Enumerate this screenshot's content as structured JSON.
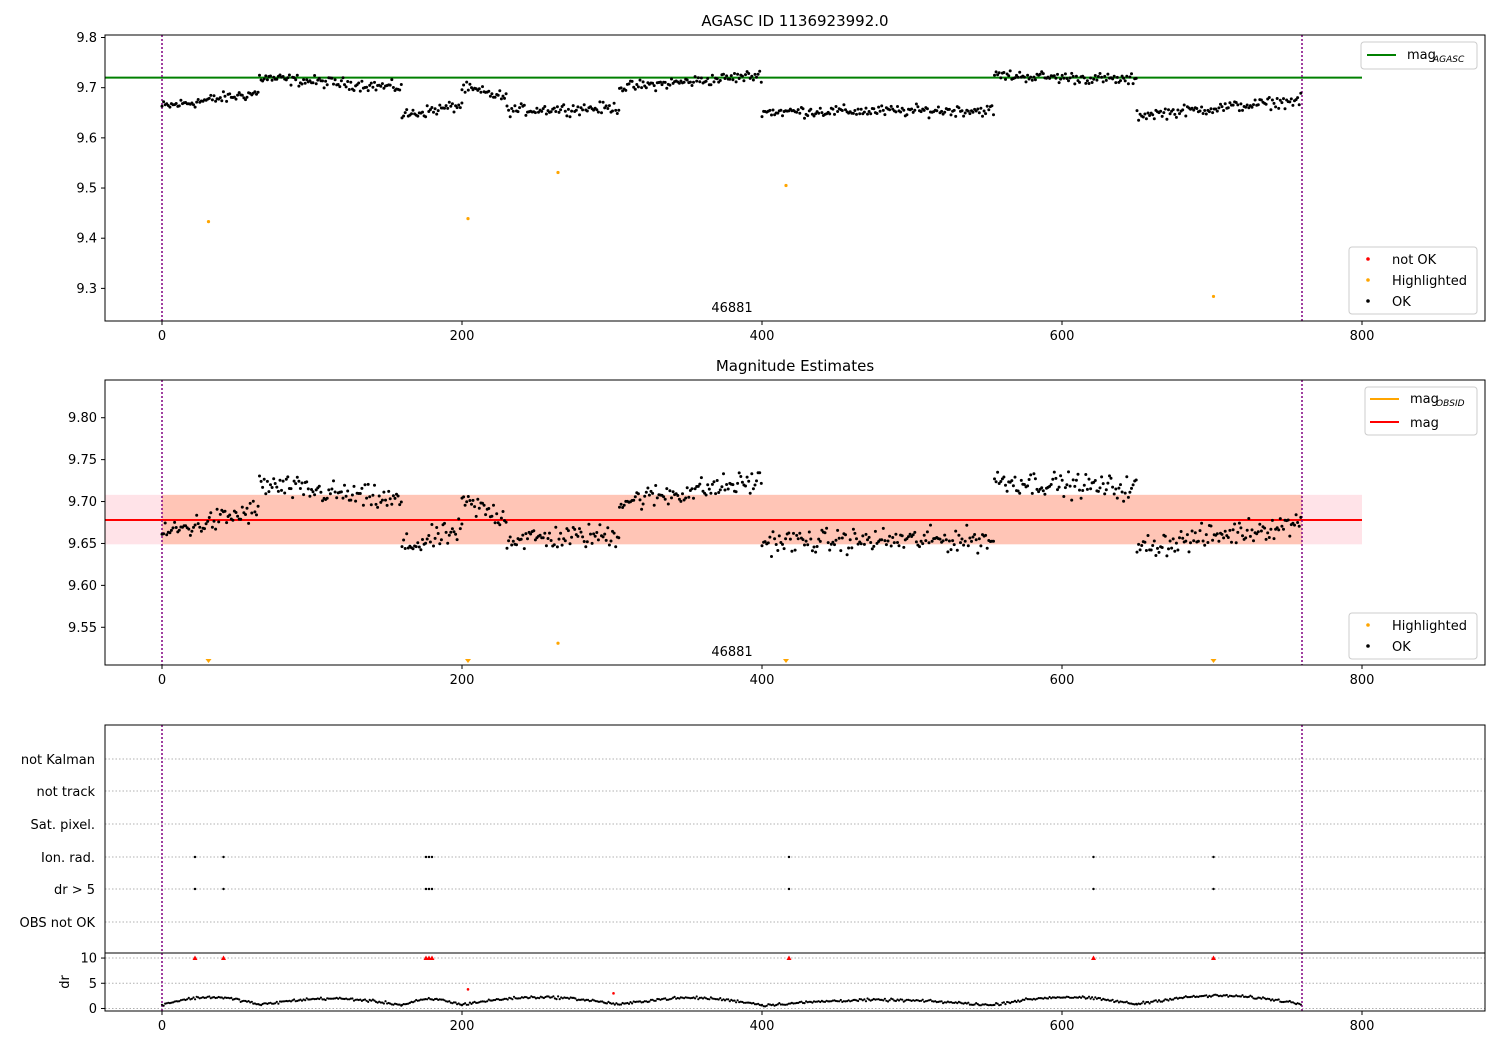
{
  "chart_data": [
    {
      "type": "scatter",
      "title": "AGASC ID 1136923992.0",
      "xlim": [
        -38,
        882
      ],
      "ylim": [
        9.235,
        9.805
      ],
      "x_ticks": [
        0,
        200,
        400,
        600,
        800
      ],
      "x_tick_labels": [
        "0",
        "200",
        "400",
        "600",
        "800"
      ],
      "y_ticks": [
        9.3,
        9.4,
        9.5,
        9.6,
        9.7,
        9.8
      ],
      "y_tick_labels": [
        "9.3",
        "9.4",
        "9.5",
        "9.6",
        "9.7",
        "9.8"
      ],
      "annotation": "46881",
      "annotation_x": 380,
      "vlines": [
        0,
        760
      ],
      "mag_agasc": 9.72,
      "mag_agasc_x_range": [
        -38,
        800
      ],
      "ok_segments": [
        {
          "x0": 0,
          "x1": 65,
          "y0": 9.662,
          "y1": 9.69
        },
        {
          "x0": 65,
          "x1": 160,
          "y0": 9.72,
          "y1": 9.7
        },
        {
          "x0": 160,
          "x1": 200,
          "y0": 9.645,
          "y1": 9.665
        },
        {
          "x0": 200,
          "x1": 230,
          "y0": 9.7,
          "y1": 9.68
        },
        {
          "x0": 230,
          "x1": 305,
          "y0": 9.655,
          "y1": 9.66
        },
        {
          "x0": 305,
          "x1": 400,
          "y0": 9.7,
          "y1": 9.725
        },
        {
          "x0": 400,
          "x1": 555,
          "y0": 9.652,
          "y1": 9.655
        },
        {
          "x0": 555,
          "x1": 650,
          "y0": 9.725,
          "y1": 9.715
        },
        {
          "x0": 650,
          "x1": 760,
          "y0": 9.645,
          "y1": 9.675
        }
      ],
      "highlighted_points": {
        "x": [
          31,
          204,
          264,
          416,
          701
        ],
        "y": [
          9.433,
          9.439,
          9.531,
          9.505,
          9.284
        ]
      },
      "legend_top": [
        {
          "label": "mag",
          "sub": "AGASC",
          "color": "#008000",
          "kind": "line"
        }
      ],
      "legend_bottom": [
        {
          "label": "not OK",
          "color": "#ff0000",
          "kind": "point"
        },
        {
          "label": "Highlighted",
          "color": "#ffa500",
          "kind": "point"
        },
        {
          "label": "OK",
          "color": "#000000",
          "kind": "point"
        }
      ]
    },
    {
      "type": "scatter",
      "title": "Magnitude Estimates",
      "xlim": [
        -38,
        882
      ],
      "ylim": [
        9.505,
        9.845
      ],
      "x_ticks": [
        0,
        200,
        400,
        600,
        800
      ],
      "x_tick_labels": [
        "0",
        "200",
        "400",
        "600",
        "800"
      ],
      "y_ticks": [
        9.55,
        9.6,
        9.65,
        9.7,
        9.75,
        9.8
      ],
      "y_tick_labels": [
        "9.55",
        "9.60",
        "9.65",
        "9.70",
        "9.75",
        "9.80"
      ],
      "annotation": "46881",
      "annotation_x": 380,
      "vlines": [
        0,
        760
      ],
      "mag": 9.678,
      "mag_band": [
        9.649,
        9.708
      ],
      "mag_band_x_range": [
        -38,
        800
      ],
      "obsid_band_x_range": [
        0,
        760
      ],
      "highlighted_points": {
        "x": [
          264
        ],
        "y": [
          9.531
        ]
      },
      "highlighted_markers_at_bottom": [
        31,
        204,
        416,
        701
      ],
      "legend_top": [
        {
          "label": "mag",
          "sub": "OBSID",
          "color": "#ffa500",
          "kind": "line"
        },
        {
          "label": "mag",
          "sub": "",
          "color": "#ff0000",
          "kind": "line"
        }
      ],
      "legend_bottom": [
        {
          "label": "Highlighted",
          "color": "#ffa500",
          "kind": "point"
        },
        {
          "label": "OK",
          "color": "#000000",
          "kind": "point"
        }
      ]
    },
    {
      "type": "scatter",
      "title": "",
      "xlim": [
        -38,
        882
      ],
      "x_ticks": [
        0,
        200,
        400,
        600,
        800
      ],
      "x_tick_labels": [
        "0",
        "200",
        "400",
        "600",
        "800"
      ],
      "vlines": [
        0,
        760
      ],
      "flag_labels": [
        "not Kalman",
        "not track",
        "Sat. pixel.",
        "Ion. rad.",
        "dr > 5",
        "OBS not OK"
      ],
      "flag_points": {
        "Ion. rad.": [
          22,
          41,
          176,
          178,
          180,
          418,
          621,
          701
        ],
        "dr > 5": [
          22,
          41,
          176,
          178,
          180,
          418,
          621,
          701
        ]
      },
      "dr": {
        "ylabel": "dr",
        "ylim": [
          -0.5,
          11
        ],
        "y_ticks": [
          0,
          5,
          10
        ],
        "y_tick_labels": [
          "0",
          "5",
          "10"
        ],
        "clipped_red_points_x": [
          22,
          41,
          176,
          178,
          180,
          418,
          621,
          701
        ],
        "red_points": {
          "x": [
            204,
            301
          ],
          "y": [
            3.8,
            3.0
          ]
        },
        "segments": [
          {
            "x0": 0,
            "x1": 65,
            "base": 1.6
          },
          {
            "x0": 65,
            "x1": 160,
            "base": 1.4
          },
          {
            "x0": 160,
            "x1": 200,
            "base": 1.3
          },
          {
            "x0": 200,
            "x1": 305,
            "base": 1.6
          },
          {
            "x0": 305,
            "x1": 400,
            "base": 1.5
          },
          {
            "x0": 400,
            "x1": 555,
            "base": 1.2
          },
          {
            "x0": 555,
            "x1": 650,
            "base": 1.6
          },
          {
            "x0": 650,
            "x1": 760,
            "base": 1.8
          }
        ]
      }
    }
  ],
  "colors": {
    "ok": "#000000",
    "highlighted": "#ffa500",
    "not_ok": "#ff0000",
    "vline": "#800080",
    "mag_agasc": "#008000",
    "mag": "#ff0000",
    "mag_band": "#ffc0cb",
    "obsid_band": "#ffa07a",
    "grid": "#b0b0b0"
  }
}
